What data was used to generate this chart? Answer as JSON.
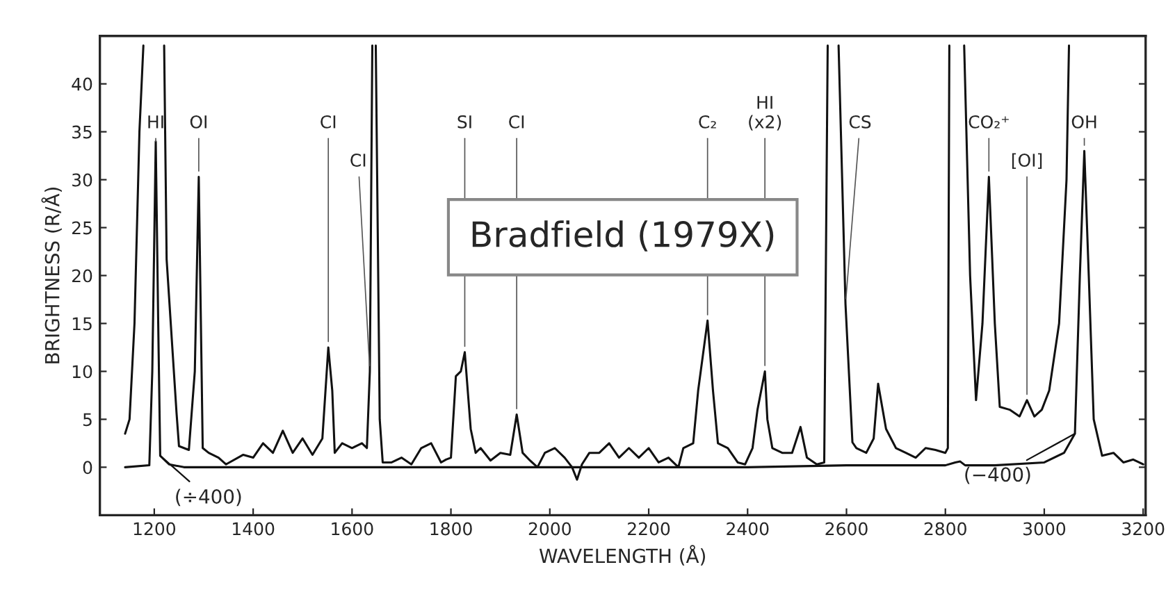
{
  "chart_data": {
    "type": "line",
    "xlabel": "WAVELENGTH (Å)",
    "ylabel": "BRIGHTNESS (R/Å)",
    "xlim": [
      1090,
      3205
    ],
    "ylim": [
      -5,
      45
    ],
    "xticks": [
      1200,
      1400,
      1600,
      1800,
      2000,
      2200,
      2400,
      2600,
      2800,
      3000,
      3200
    ],
    "yticks": [
      0,
      5,
      10,
      15,
      20,
      25,
      30,
      35,
      40
    ],
    "grid": false,
    "legend": false,
    "marker": "none",
    "line_style": "solid",
    "series": [
      {
        "color": "#111111",
        "x": [
          1141,
          1150,
          1160,
          1170,
          1178,
          1200,
          1220,
          1225,
          1245,
          1250,
          1270,
          1282,
          1290,
          1298,
          1310,
          1330,
          1345,
          1380,
          1400,
          1420,
          1440,
          1460,
          1480,
          1500,
          1520,
          1540,
          1552,
          1560,
          1565,
          1580,
          1600,
          1620,
          1630,
          1636,
          1641,
          1645,
          1648,
          1656,
          1662,
          1680,
          1700,
          1720,
          1740,
          1760,
          1780,
          1790,
          1800,
          1810,
          1820,
          1828,
          1840,
          1850,
          1860,
          1880,
          1900,
          1920,
          1933,
          1945,
          1960,
          1975,
          1990,
          2010,
          2030,
          2045,
          2055,
          2065,
          2080,
          2100,
          2120,
          2140,
          2160,
          2180,
          2200,
          2220,
          2240,
          2260,
          2270,
          2290,
          2300,
          2319,
          2330,
          2340,
          2360,
          2380,
          2395,
          2410,
          2420,
          2435,
          2440,
          2450,
          2470,
          2490,
          2507,
          2520,
          2540,
          2555,
          2562,
          2573,
          2584,
          2598,
          2612,
          2620,
          2640,
          2655,
          2664,
          2680,
          2700,
          2720,
          2740,
          2760,
          2780,
          2800,
          2805,
          2808,
          2823,
          2838,
          2850,
          2862,
          2875,
          2888,
          2900,
          2910,
          2930,
          2950,
          2965,
          2980,
          2995,
          3010,
          3030,
          3045,
          3050
        ],
        "values": [
          3.5,
          5,
          15,
          35,
          44,
          null,
          44,
          21.7,
          5.7,
          2.2,
          1.8,
          10,
          30.3,
          2,
          1.5,
          1,
          0.3,
          1.3,
          1,
          2.5,
          1.5,
          3.8,
          1.5,
          3,
          1.3,
          3,
          12.5,
          8,
          1.5,
          2.5,
          2,
          2.5,
          2,
          10,
          44,
          null,
          44,
          5,
          0.5,
          0.5,
          1,
          0.3,
          2,
          2.5,
          0.5,
          0.8,
          1,
          9.5,
          10,
          12,
          4,
          1.5,
          2,
          0.7,
          1.5,
          1.3,
          5.5,
          1.5,
          0.7,
          0,
          1.5,
          2,
          1,
          0,
          -1.3,
          0.3,
          1.5,
          1.5,
          2.5,
          1,
          2,
          1,
          2,
          0.5,
          1,
          0,
          2,
          2.5,
          8,
          15.3,
          8,
          2.5,
          2,
          0.5,
          0.3,
          2,
          6,
          10,
          5,
          2,
          1.5,
          1.5,
          4.2,
          1,
          0.3,
          0.5,
          44,
          null,
          44,
          17,
          2.6,
          2,
          1.5,
          3,
          8.7,
          4,
          2,
          1.5,
          1,
          2,
          1.8,
          1.5,
          2,
          44,
          null,
          44,
          20,
          7,
          15,
          30.3,
          15,
          6.3,
          6,
          5.3,
          7,
          5.3,
          6,
          8,
          15,
          30,
          44
        ]
      },
      {
        "color": "#111111",
        "x": [
          1141,
          1190,
          1196,
          1203,
          1208,
          1212,
          1230,
          1260,
          1400,
          1600,
          1800,
          2000,
          2200,
          2400,
          2600,
          2800,
          2820,
          2830,
          2840,
          2900,
          3000,
          3040,
          3062,
          3072,
          3081,
          3090,
          3100,
          3117,
          3140,
          3160,
          3180,
          3200
        ],
        "values": [
          0,
          0.2,
          10,
          34,
          15,
          1.2,
          0.3,
          0,
          0,
          0,
          0,
          0,
          0,
          0,
          0.2,
          0.2,
          0.5,
          0.6,
          0.2,
          0.2,
          0.5,
          1.5,
          3.5,
          20,
          33,
          20,
          5,
          1.2,
          1.5,
          0.5,
          0.8,
          0.3
        ]
      }
    ],
    "annotations": [
      {
        "text": "HI",
        "x": 1203,
        "y": 34
      },
      {
        "text": "OI",
        "x": 1290,
        "y": 30.3
      },
      {
        "text": "CI",
        "x": 1552,
        "y": 12.5
      },
      {
        "text": "CI",
        "x": 1636,
        "y": 10
      },
      {
        "text": "SI",
        "x": 1828,
        "y": 12
      },
      {
        "text": "CI",
        "x": 1933,
        "y": 5.5
      },
      {
        "text": "C₂",
        "x": 2319,
        "y": 15.3
      },
      {
        "text": "HI\n(x2)",
        "x": 2435,
        "y": 10
      },
      {
        "text": "CS",
        "x": 2598,
        "y": 17
      },
      {
        "text": "OH",
        "x": 3081,
        "y": 33
      },
      {
        "text": "CO₂⁺",
        "x": 2888,
        "y": 30.3
      },
      {
        "text": "[OI]",
        "x": 2965,
        "y": 7
      },
      {
        "text": "(÷400)",
        "x": 1212,
        "y": 1.2
      },
      {
        "text": "(−400)",
        "x": 3062,
        "y": 3.5
      },
      "Bradfield (1979X)"
    ]
  }
}
